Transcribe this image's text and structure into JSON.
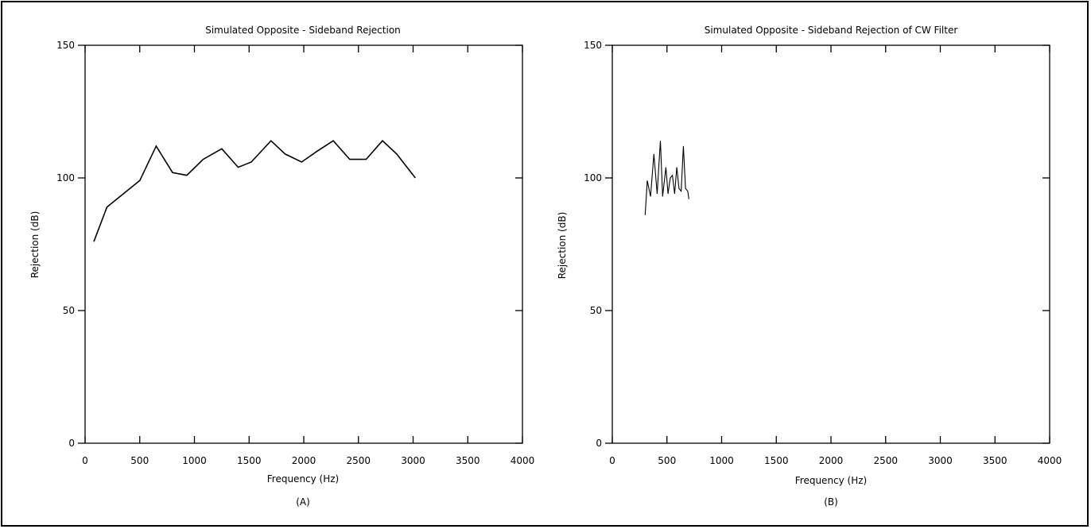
{
  "chart_data": [
    {
      "type": "line",
      "title": "Simulated Opposite - Sideband Rejection",
      "xlabel": "Frequency (Hz)",
      "ylabel": "Rejection (dB)",
      "caption": "(A)",
      "xlim": [
        0,
        4000
      ],
      "ylim": [
        0,
        150
      ],
      "xticks": [
        0,
        500,
        1000,
        1500,
        2000,
        2500,
        3000,
        3500,
        4000
      ],
      "yticks": [
        0,
        50,
        100,
        150
      ],
      "grid": false,
      "series": [
        {
          "x": [
            80,
            200,
            500,
            650,
            800,
            930,
            1080,
            1250,
            1400,
            1520,
            1700,
            1830,
            1980,
            2120,
            2270,
            2420,
            2570,
            2720,
            2850,
            3020
          ],
          "y": [
            76,
            89,
            99,
            112,
            102,
            101,
            107,
            111,
            104,
            106,
            114,
            109,
            106,
            110,
            114,
            107,
            107,
            114,
            109,
            100
          ]
        }
      ]
    },
    {
      "type": "line",
      "title": "Simulated Opposite - Sideband Rejection of CW Filter",
      "xlabel": "Frequency (Hz)",
      "ylabel": "Rejection (dB)",
      "caption": "(B)",
      "xlim": [
        0,
        4000
      ],
      "ylim": [
        0,
        150
      ],
      "xticks": [
        0,
        500,
        1000,
        1500,
        2000,
        2500,
        3000,
        3500,
        4000
      ],
      "yticks": [
        0,
        50,
        100,
        150
      ],
      "grid": false,
      "series": [
        {
          "x": [
            300,
            320,
            350,
            380,
            410,
            440,
            460,
            490,
            510,
            530,
            550,
            570,
            590,
            610,
            630,
            650,
            670,
            690,
            700
          ],
          "y": [
            86,
            99,
            93,
            109,
            94,
            114,
            93,
            104,
            94,
            100,
            101,
            94,
            104,
            96,
            95,
            112,
            96,
            95,
            92
          ]
        }
      ]
    }
  ]
}
